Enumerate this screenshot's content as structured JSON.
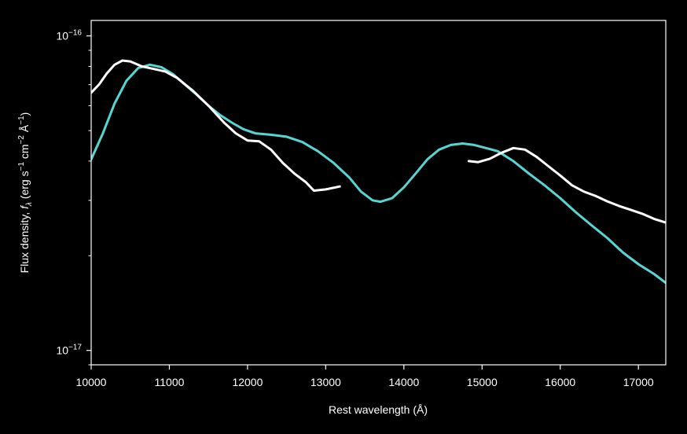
{
  "chart_data": {
    "type": "line",
    "xlabel": "Rest wavelength (Å)",
    "ylabel_parts": [
      "Flux density, ",
      "f",
      "λ",
      " (erg s",
      "−1",
      " cm",
      "−2",
      " Å",
      "−1",
      ")"
    ],
    "xlim": [
      10000,
      17350
    ],
    "ylim": [
      9e-18,
      1.12e-16
    ],
    "yscale": "log",
    "x_ticks": [
      {
        "value": 10000,
        "label": "10000"
      },
      {
        "value": 11000,
        "label": "11000"
      },
      {
        "value": 12000,
        "label": "12000"
      },
      {
        "value": 13000,
        "label": "13000"
      },
      {
        "value": 14000,
        "label": "14000"
      },
      {
        "value": 15000,
        "label": "15000"
      },
      {
        "value": 16000,
        "label": "16000"
      },
      {
        "value": 17000,
        "label": "17000"
      }
    ],
    "y_ticks": [
      {
        "value": 1e-16,
        "base": "10",
        "exp": "−16"
      },
      {
        "value": 1e-17,
        "base": "10",
        "exp": "−17"
      }
    ],
    "colors": {
      "background": "#000000",
      "axes": "#ffffff",
      "observed": "#ffffff",
      "model": "#56d6d3"
    },
    "series": [
      {
        "key": "model",
        "color": "#56d6d3",
        "points": [
          [
            10000,
            4.05e-17
          ],
          [
            10150,
            4.9e-17
          ],
          [
            10300,
            6.1e-17
          ],
          [
            10450,
            7.2e-17
          ],
          [
            10600,
            7.9e-17
          ],
          [
            10750,
            8.1e-17
          ],
          [
            10900,
            7.95e-17
          ],
          [
            11050,
            7.55e-17
          ],
          [
            11200,
            7e-17
          ],
          [
            11350,
            6.5e-17
          ],
          [
            11500,
            6e-17
          ],
          [
            11650,
            5.6e-17
          ],
          [
            11800,
            5.3e-17
          ],
          [
            11950,
            5.05e-17
          ],
          [
            12100,
            4.9e-17
          ],
          [
            12300,
            4.85e-17
          ],
          [
            12500,
            4.78e-17
          ],
          [
            12700,
            4.6e-17
          ],
          [
            12900,
            4.3e-17
          ],
          [
            13100,
            3.95e-17
          ],
          [
            13300,
            3.55e-17
          ],
          [
            13450,
            3.2e-17
          ],
          [
            13600,
            3e-17
          ],
          [
            13700,
            2.97e-17
          ],
          [
            13850,
            3.05e-17
          ],
          [
            14000,
            3.3e-17
          ],
          [
            14150,
            3.65e-17
          ],
          [
            14300,
            4.05e-17
          ],
          [
            14450,
            4.35e-17
          ],
          [
            14600,
            4.5e-17
          ],
          [
            14750,
            4.55e-17
          ],
          [
            14900,
            4.5e-17
          ],
          [
            15050,
            4.4e-17
          ],
          [
            15200,
            4.3e-17
          ],
          [
            15400,
            4e-17
          ],
          [
            15600,
            3.65e-17
          ],
          [
            15800,
            3.35e-17
          ],
          [
            16000,
            3.05e-17
          ],
          [
            16200,
            2.75e-17
          ],
          [
            16400,
            2.5e-17
          ],
          [
            16600,
            2.28e-17
          ],
          [
            16800,
            2.05e-17
          ],
          [
            17000,
            1.88e-17
          ],
          [
            17200,
            1.75e-17
          ],
          [
            17350,
            1.64e-17
          ]
        ]
      },
      {
        "key": "observed_blue",
        "color": "#ffffff",
        "points": [
          [
            10000,
            6.6e-17
          ],
          [
            10100,
            7e-17
          ],
          [
            10200,
            7.6e-17
          ],
          [
            10300,
            8.1e-17
          ],
          [
            10400,
            8.35e-17
          ],
          [
            10500,
            8.3e-17
          ],
          [
            10650,
            8e-17
          ],
          [
            10800,
            7.85e-17
          ],
          [
            10950,
            7.7e-17
          ],
          [
            11100,
            7.35e-17
          ],
          [
            11300,
            6.7e-17
          ],
          [
            11500,
            6e-17
          ],
          [
            11700,
            5.3e-17
          ],
          [
            11850,
            4.9e-17
          ],
          [
            12000,
            4.65e-17
          ],
          [
            12150,
            4.62e-17
          ],
          [
            12300,
            4.35e-17
          ],
          [
            12450,
            3.95e-17
          ],
          [
            12600,
            3.65e-17
          ],
          [
            12750,
            3.42e-17
          ],
          [
            12850,
            3.22e-17
          ],
          [
            13000,
            3.25e-17
          ],
          [
            13180,
            3.32e-17
          ]
        ]
      },
      {
        "key": "observed_red",
        "color": "#ffffff",
        "points": [
          [
            14830,
            4e-17
          ],
          [
            14950,
            3.97e-17
          ],
          [
            15100,
            4.07e-17
          ],
          [
            15250,
            4.25e-17
          ],
          [
            15400,
            4.4e-17
          ],
          [
            15550,
            4.35e-17
          ],
          [
            15700,
            4.12e-17
          ],
          [
            15850,
            3.85e-17
          ],
          [
            16000,
            3.6e-17
          ],
          [
            16150,
            3.35e-17
          ],
          [
            16300,
            3.2e-17
          ],
          [
            16450,
            3.1e-17
          ],
          [
            16600,
            2.98e-17
          ],
          [
            16750,
            2.88e-17
          ],
          [
            16900,
            2.8e-17
          ],
          [
            17050,
            2.72e-17
          ],
          [
            17200,
            2.62e-17
          ],
          [
            17350,
            2.55e-17
          ]
        ]
      }
    ]
  }
}
